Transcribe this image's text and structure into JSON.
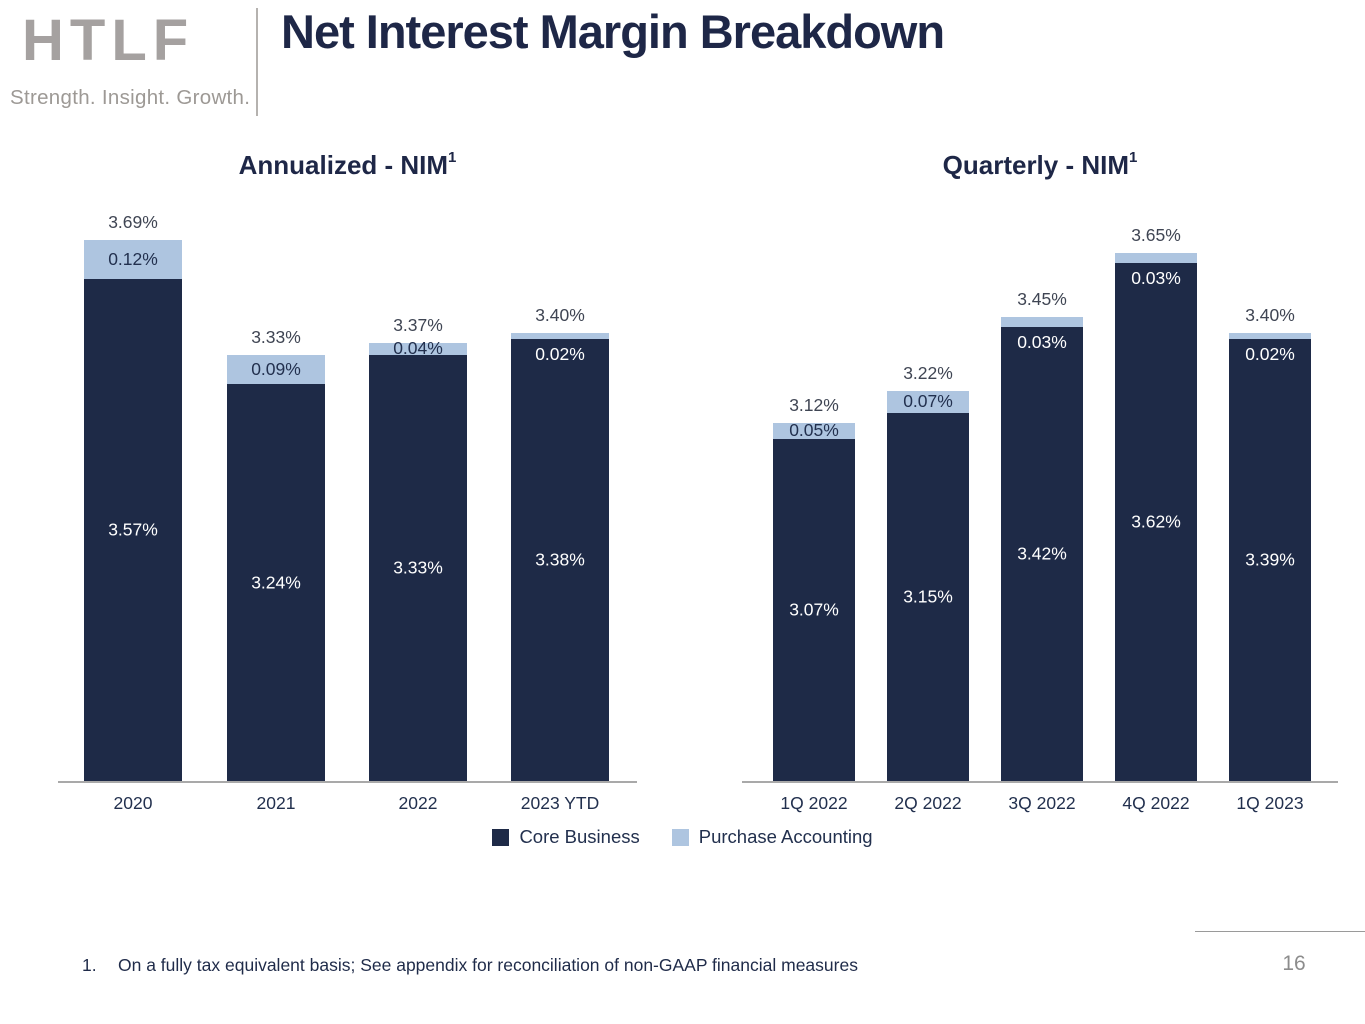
{
  "header": {
    "logo_text": "HTLF",
    "logo_tagline": "Strength. Insight. Growth.",
    "title": "Net Interest Margin Breakdown"
  },
  "colors": {
    "core_business": "#1E2A47",
    "purchase_accounting": "#AEC5E0",
    "navy_text": "#22304E",
    "axis_line": "#A9A9A9",
    "page_number_gray": "#8C8C8C"
  },
  "legend": {
    "core_label": "Core Business",
    "purchase_label": "Purchase Accounting"
  },
  "footnote": {
    "number": "1.",
    "text": "On a fully tax equivalent basis; See appendix for reconciliation of non-GAAP financial measures"
  },
  "page_number": "16",
  "chart_data": [
    {
      "type": "bar",
      "stacked": true,
      "title": "Annualized - NIM",
      "title_superscript": "1",
      "categories": [
        "2020",
        "2021",
        "2022",
        "2023 YTD"
      ],
      "series": [
        {
          "name": "Core Business",
          "values": [
            3.57,
            3.24,
            3.33,
            3.38
          ]
        },
        {
          "name": "Purchase Accounting",
          "values": [
            0.12,
            0.09,
            0.04,
            0.02
          ]
        }
      ],
      "totals": [
        3.69,
        3.33,
        3.37,
        3.4
      ],
      "labels": {
        "totals": [
          "3.69%",
          "3.33%",
          "3.37%",
          "3.40%"
        ],
        "core": [
          "3.57%",
          "3.24%",
          "3.33%",
          "3.38%"
        ],
        "purchase": [
          "0.12%",
          "0.09%",
          "0.04%",
          "0.02%"
        ],
        "purchase_label_style": [
          "dark-on-light",
          "dark-on-light",
          "dark-on-light",
          "white-below"
        ]
      },
      "xlabel": "",
      "ylabel": "",
      "ylim": [
        2.0,
        3.8
      ],
      "grid": false,
      "y_axis_visible": false,
      "legend_position": "bottom-center"
    },
    {
      "type": "bar",
      "stacked": true,
      "title": "Quarterly - NIM",
      "title_superscript": "1",
      "categories": [
        "1Q 2022",
        "2Q 2022",
        "3Q 2022",
        "4Q 2022",
        "1Q 2023"
      ],
      "series": [
        {
          "name": "Core Business",
          "values": [
            3.07,
            3.15,
            3.42,
            3.62,
            3.39
          ]
        },
        {
          "name": "Purchase Accounting",
          "values": [
            0.05,
            0.07,
            0.03,
            0.03,
            0.02
          ]
        }
      ],
      "totals": [
        3.12,
        3.22,
        3.45,
        3.65,
        3.4
      ],
      "labels": {
        "totals": [
          "3.12%",
          "3.22%",
          "3.45%",
          "3.65%",
          "3.40%"
        ],
        "core": [
          "3.07%",
          "3.15%",
          "3.42%",
          "3.62%",
          "3.39%"
        ],
        "purchase": [
          "0.05%",
          "0.07%",
          "0.03%",
          "0.03%",
          "0.02%"
        ],
        "purchase_label_style": [
          "dark-on-light",
          "dark-on-light",
          "white-below",
          "white-below",
          "white-below"
        ]
      },
      "xlabel": "",
      "ylabel": "",
      "ylim": [
        2.0,
        3.8
      ],
      "grid": false,
      "y_axis_visible": false,
      "legend_position": "bottom-center"
    }
  ]
}
